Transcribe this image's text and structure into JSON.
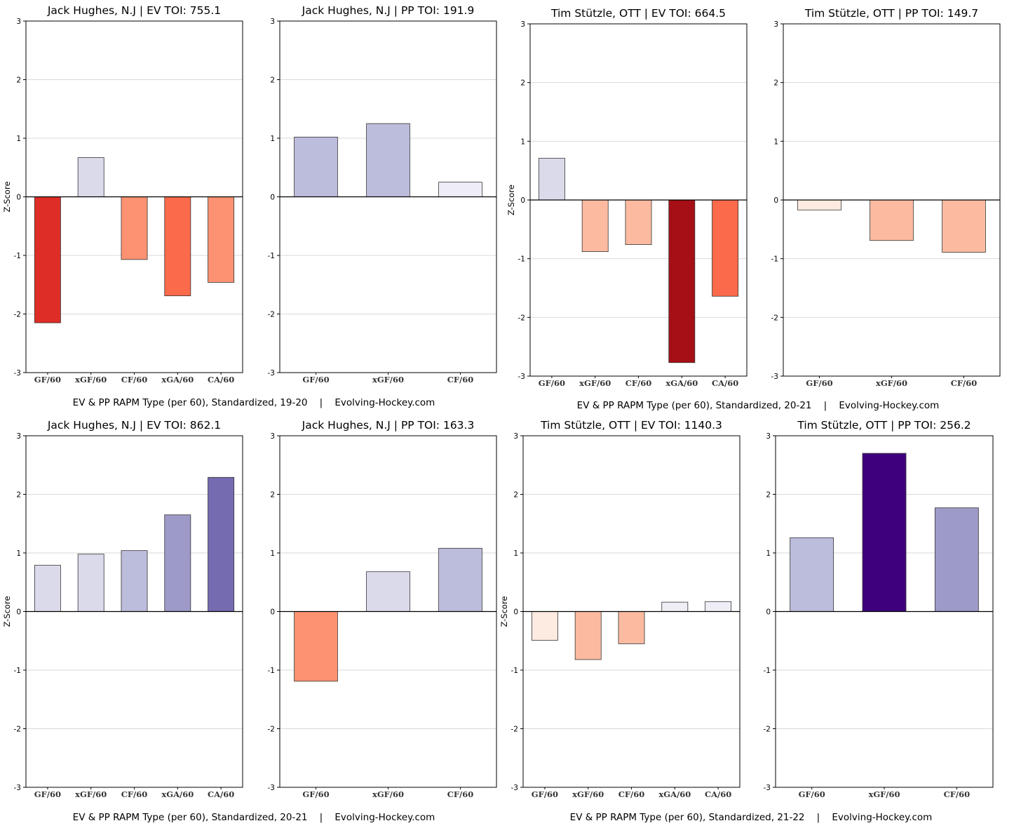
{
  "captions": [
    "EV & PP RAPM Type (per 60), Standardized, 19-20    |    Evolving-Hockey.com",
    "EV & PP RAPM Type (per 60), Standardized, 20-21    |    Evolving-Hockey.com",
    "EV & PP RAPM Type (per 60), Standardized, 20-21    |    Evolving-Hockey.com",
    "EV & PP RAPM Type (per 60), Standardized, 21-22    |    Evolving-Hockey.com"
  ],
  "colors": {
    "neg_scale": [
      "#fdeae0",
      "#fcbba1",
      "#fc9272",
      "#fb6a4a",
      "#de2d26",
      "#a50f15"
    ],
    "pos_scale": [
      "#efedf5",
      "#dadaeb",
      "#bcbddc",
      "#9e9ac8",
      "#756bb1",
      "#3f007d"
    ],
    "grid": "#d9d9d9",
    "axis": "#000000"
  },
  "chart_data": [
    {
      "type": "bar",
      "title": "Jack Hughes, N.J  |  EV TOI: 755.1",
      "ylabel": "Z-Score",
      "ylim": [
        -3,
        3
      ],
      "yticks": [
        "-3",
        "-2",
        "-1",
        "0",
        "1",
        "2",
        "3"
      ],
      "categories": [
        "GF/60",
        "xGF/60",
        "CF/60",
        "xGA/60",
        "CA/60"
      ],
      "values": [
        -2.15,
        0.67,
        -1.07,
        -1.69,
        -1.46
      ]
    },
    {
      "type": "bar",
      "title": "Jack Hughes, N.J  |  PP TOI: 191.9",
      "ylabel": "",
      "ylim": [
        -3,
        3
      ],
      "yticks": [
        "-3",
        "-2",
        "-1",
        "0",
        "1",
        "2",
        "3"
      ],
      "categories": [
        "GF/60",
        "xGF/60",
        "CF/60"
      ],
      "values": [
        1.02,
        1.25,
        0.25
      ]
    },
    {
      "type": "bar",
      "title": "Tim Stützle, OTT  |  EV TOI: 664.5",
      "ylabel": "Z-Score",
      "ylim": [
        -3,
        3
      ],
      "yticks": [
        "-3",
        "-2",
        "-1",
        "0",
        "1",
        "2",
        "3"
      ],
      "categories": [
        "GF/60",
        "xGF/60",
        "CF/60",
        "xGA/60",
        "CA/60"
      ],
      "values": [
        0.71,
        -0.88,
        -0.76,
        -2.77,
        -1.64
      ]
    },
    {
      "type": "bar",
      "title": "Tim Stützle, OTT  |  PP TOI: 149.7",
      "ylabel": "",
      "ylim": [
        -3,
        3
      ],
      "yticks": [
        "-3",
        "-2",
        "-1",
        "0",
        "1",
        "2",
        "3"
      ],
      "categories": [
        "GF/60",
        "xGF/60",
        "CF/60"
      ],
      "values": [
        -0.17,
        -0.69,
        -0.89
      ]
    },
    {
      "type": "bar",
      "title": "Jack Hughes, N.J  |  EV TOI: 862.1",
      "ylabel": "Z-Score",
      "ylim": [
        -3,
        3
      ],
      "yticks": [
        "-3",
        "-2",
        "-1",
        "0",
        "1",
        "2",
        "3"
      ],
      "categories": [
        "GF/60",
        "xGF/60",
        "CF/60",
        "xGA/60",
        "CA/60"
      ],
      "values": [
        0.79,
        0.98,
        1.04,
        1.65,
        2.29
      ]
    },
    {
      "type": "bar",
      "title": "Jack Hughes, N.J  |  PP TOI: 163.3",
      "ylabel": "",
      "ylim": [
        -3,
        3
      ],
      "yticks": [
        "-3",
        "-2",
        "-1",
        "0",
        "1",
        "2",
        "3"
      ],
      "categories": [
        "GF/60",
        "xGF/60",
        "CF/60"
      ],
      "values": [
        -1.19,
        0.68,
        1.08
      ]
    },
    {
      "type": "bar",
      "title": "Tim Stützle, OTT  |  EV TOI: 1140.3",
      "ylabel": "Z-Score",
      "ylim": [
        -3,
        3
      ],
      "yticks": [
        "-3",
        "-2",
        "-1",
        "0",
        "1",
        "2",
        "3"
      ],
      "categories": [
        "GF/60",
        "xGF/60",
        "CF/60",
        "xGA/60",
        "CA/60"
      ],
      "values": [
        -0.49,
        -0.82,
        -0.55,
        0.16,
        0.17
      ]
    },
    {
      "type": "bar",
      "title": "Tim Stützle, OTT  |  PP TOI: 256.2",
      "ylabel": "",
      "ylim": [
        -3,
        3
      ],
      "yticks": [
        "-3",
        "-2",
        "-1",
        "0",
        "1",
        "2",
        "3"
      ],
      "categories": [
        "GF/60",
        "xGF/60",
        "CF/60"
      ],
      "values": [
        1.26,
        2.7,
        1.77
      ]
    }
  ]
}
